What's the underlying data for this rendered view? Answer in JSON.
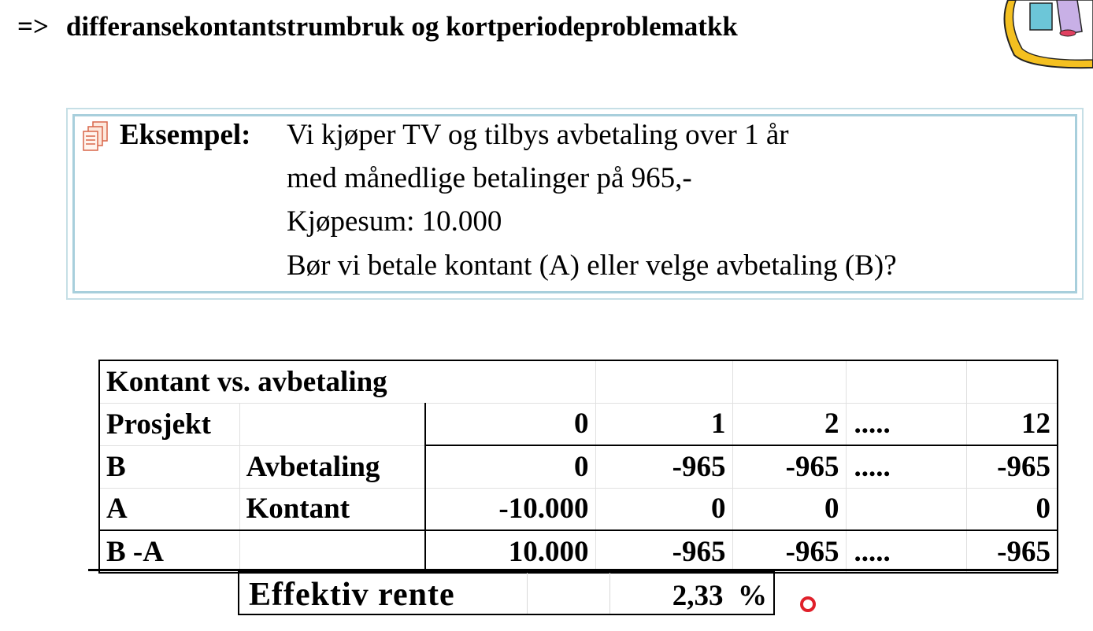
{
  "heading": {
    "arrow": "=>",
    "text": "differansekontantstrumbruk og kortperiodeproblematkk"
  },
  "example": {
    "label": "Eksempel:",
    "lines": [
      "Vi kjøper TV og tilbys avbetaling over 1 år",
      "med månedlige betalinger på 965,-",
      "Kjøpesum: 10.000",
      "Bør vi betale kontant (A) eller velge avbetaling (B)?"
    ]
  },
  "table": {
    "title": "Kontant vs. avbetaling",
    "header": {
      "project": "Prosjekt",
      "periods": [
        "0",
        "1",
        "2",
        ".....",
        "12"
      ]
    },
    "rows": [
      {
        "project": "B",
        "name": "Avbetaling",
        "values": [
          "0",
          "-965",
          "-965",
          ".....",
          "-965"
        ]
      },
      {
        "project": "A",
        "name": "Kontant",
        "values": [
          "-10.000",
          "0",
          "0",
          "",
          "0"
        ]
      },
      {
        "project": "B -A",
        "name": "",
        "values": [
          "10.000",
          "-965",
          "-965",
          ".....",
          "-965"
        ]
      }
    ]
  },
  "rate": {
    "label": "Effektiv rente",
    "value": "2,33",
    "unit": "%"
  },
  "colors": {
    "box_border": "#a8cfdc",
    "cursor": "#e0202a"
  }
}
